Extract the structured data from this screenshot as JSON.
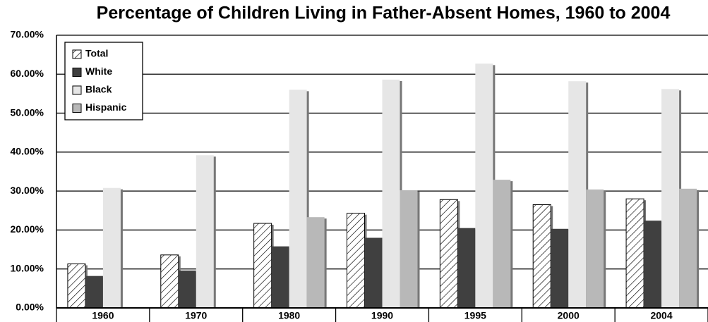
{
  "chart_data": {
    "type": "bar",
    "title": "Percentage of Children Living in Father-Absent Homes, 1960 to 2004",
    "categories": [
      "1960",
      "1970",
      "1980",
      "1990",
      "1995",
      "2000",
      "2004"
    ],
    "series": [
      {
        "name": "Total",
        "color": "#ffffff",
        "hatch": true,
        "values": [
          11.3,
          13.6,
          21.7,
          24.3,
          27.8,
          26.5,
          28.0
        ]
      },
      {
        "name": "White",
        "color": "#404040",
        "values": [
          8.2,
          9.6,
          15.8,
          18.0,
          20.5,
          20.3,
          22.4
        ]
      },
      {
        "name": "Black",
        "color": "#e6e6e6",
        "values": [
          30.8,
          39.2,
          56.0,
          58.6,
          62.7,
          58.2,
          56.2
        ]
      },
      {
        "name": "Hispanic",
        "color": "#b8b8b8",
        "values": [
          null,
          null,
          23.3,
          30.2,
          32.9,
          30.4,
          30.6
        ]
      }
    ],
    "ylim": [
      0,
      70
    ],
    "yticks": [
      {
        "value": 0,
        "label": "0.00%"
      },
      {
        "value": 10,
        "label": "10.00%"
      },
      {
        "value": 20,
        "label": "20.00%"
      },
      {
        "value": 30,
        "label": "30.00%"
      },
      {
        "value": 40,
        "label": "40.00%"
      },
      {
        "value": 50,
        "label": "50.00%"
      },
      {
        "value": 60,
        "label": "60.00%"
      },
      {
        "value": 70,
        "label": "70.00%"
      }
    ],
    "grid": true,
    "legend": "top-left"
  }
}
